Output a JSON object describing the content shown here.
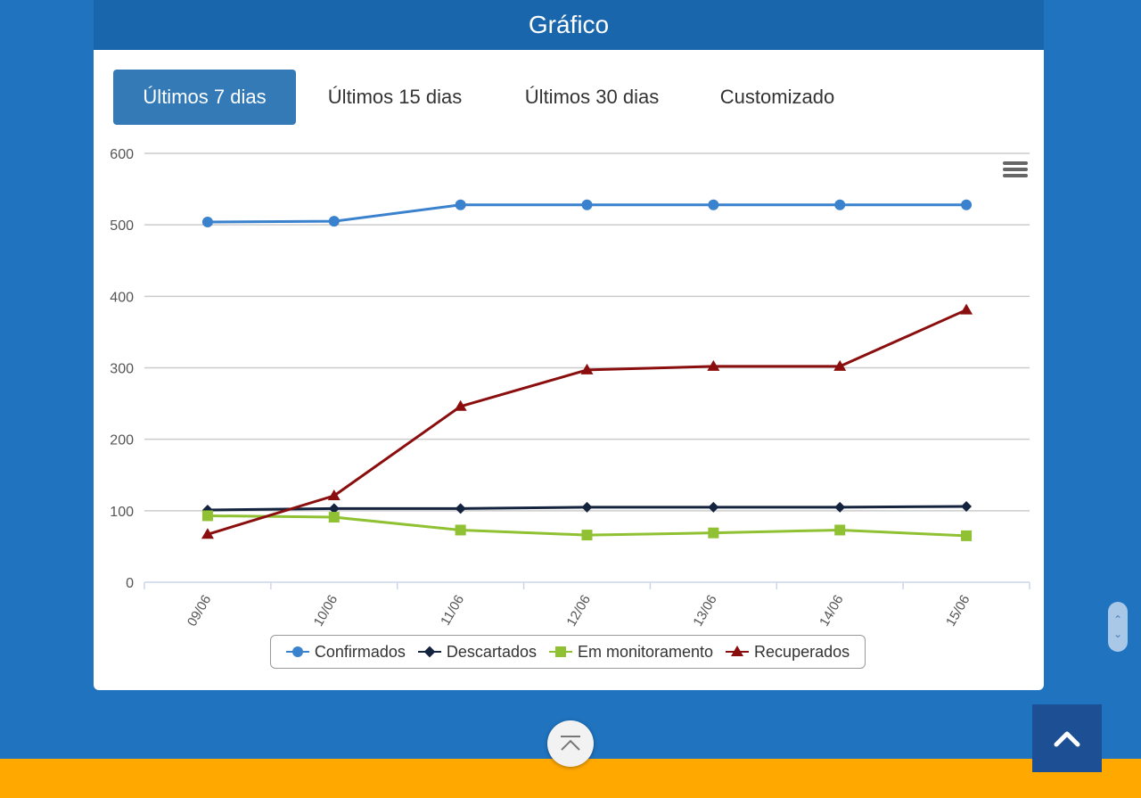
{
  "header": {
    "title": "Gráfico"
  },
  "tabs": [
    {
      "label": "Últimos 7 dias",
      "active": true
    },
    {
      "label": "Últimos 15 dias",
      "active": false
    },
    {
      "label": "Últimos 30 dias",
      "active": false
    },
    {
      "label": "Customizado",
      "active": false
    }
  ],
  "icons": {
    "menu": "hamburger-menu-icon",
    "scroll_top": "chevron-up-icon",
    "back_to_top": "arrow-to-top-icon",
    "scroll": "scroll-arrows-icon"
  },
  "chart_data": {
    "type": "line",
    "categories": [
      "09/06",
      "10/06",
      "11/06",
      "12/06",
      "13/06",
      "14/06",
      "15/06"
    ],
    "yticks": [
      "0",
      "100",
      "200",
      "300",
      "400",
      "500",
      "600"
    ],
    "ylim": [
      0,
      600
    ],
    "grid": true,
    "legend_position": "bottom",
    "series": [
      {
        "name": "Confirmados",
        "color": "#3a82ce",
        "marker": "circle",
        "values": [
          504,
          505,
          528,
          528,
          528,
          528,
          528
        ]
      },
      {
        "name": "Descartados",
        "color": "#14233e",
        "marker": "diamond",
        "values": [
          101,
          103,
          103,
          105,
          105,
          105,
          106
        ]
      },
      {
        "name": "Em monitoramento",
        "color": "#8fc133",
        "marker": "square",
        "values": [
          93,
          91,
          73,
          66,
          69,
          73,
          65
        ]
      },
      {
        "name": "Recuperados",
        "color": "#8b0e0e",
        "marker": "triangle",
        "values": [
          67,
          121,
          246,
          297,
          302,
          302,
          381
        ]
      }
    ]
  }
}
